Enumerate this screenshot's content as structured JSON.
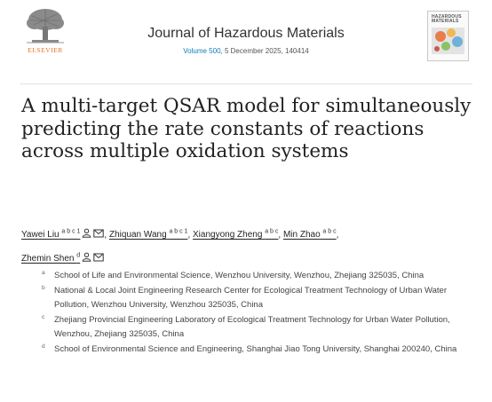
{
  "header": {
    "publisher": "ELSEVIER",
    "journal_title": "Journal of Hazardous Materials",
    "volume": "Volume 500",
    "issue_info": ", 5 December 2025, 140414",
    "cover_title_line1": "HAZARDOUS",
    "cover_title_line2": "MATERIALS"
  },
  "article": {
    "title": "A multi-target QSAR model for simultaneously predicting the rate constants of reactions across multiple oxidation systems"
  },
  "authors": [
    {
      "name": "Yawei Liu",
      "sup": "a b c 1",
      "icons": [
        "person-icon",
        "email-icon"
      ],
      "sep": ", "
    },
    {
      "name": "Zhiquan Wang",
      "sup": "a b c 1",
      "icons": [],
      "sep": ", "
    },
    {
      "name": "Xiangyong Zheng",
      "sup": "a b c",
      "icons": [],
      "sep": ", "
    },
    {
      "name": "Min Zhao",
      "sup": "a b c",
      "icons": [],
      "sep": ","
    },
    {
      "name": "Zhemin Shen",
      "sup": "d",
      "icons": [
        "person-icon",
        "email-icon"
      ],
      "sep": ""
    }
  ],
  "affiliations": [
    {
      "mark": "a",
      "text": "School of Life and Environmental Science, Wenzhou University, Wenzhou, Zhejiang 325035, China"
    },
    {
      "mark": "b",
      "text": "National & Local Joint Engineering Research Center for Ecological Treatment Technology of Urban Water Pollution, Wenzhou University, Wenzhou 325035, China"
    },
    {
      "mark": "c",
      "text": "Zhejiang Provincial Engineering Laboratory of Ecological Treatment Technology for Urban Water Pollution, Wenzhou, Zhejiang 325035, China"
    },
    {
      "mark": "d",
      "text": "School of Environmental Science and Engineering, Shanghai Jiao Tong University, Shanghai 200240, China"
    }
  ],
  "colors": {
    "link": "#0c7dbb",
    "elsevier_orange": "#e9711c"
  }
}
